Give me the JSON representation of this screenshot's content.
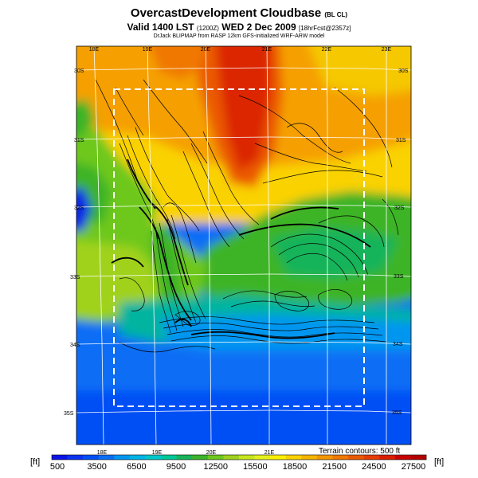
{
  "title": {
    "main": "OvercastDevelopment Cloudbase",
    "main_suffix": "(BL CL)",
    "valid": "Valid 1400 LST",
    "valid_code": "(1200Z)",
    "date": "WED 2 Dec 2009",
    "run_info": "[18hrFcst@2357z]",
    "model": "DrJack BLIPMAP from RASP 12km GFS-initialized WRF-ARW model"
  },
  "map": {
    "lon_labels_top": [
      "18E",
      "19E",
      "20E",
      "21E",
      "22E",
      "23E"
    ],
    "lon_labels_bottom": [
      "18E",
      "19E",
      "20E",
      "21E"
    ],
    "lat_labels_left": [
      "30S",
      "31S",
      "32S",
      "33S",
      "34S",
      "35S"
    ],
    "lat_labels_right": [
      "30S",
      "31S",
      "32S",
      "33S",
      "34S",
      "35S"
    ],
    "terrain_note": "Terrain contours: 500 ft"
  },
  "colorbar": {
    "unit_left": "[ft]",
    "unit_right": "[ft]",
    "labels": [
      "500",
      "3500",
      "6500",
      "9500",
      "12500",
      "15500",
      "18500",
      "21500",
      "24500",
      "27500"
    ],
    "colors": [
      "#0a14e6",
      "#0a32f0",
      "#0050f5",
      "#0a6ef5",
      "#0096f0",
      "#00b4e6",
      "#00c8c8",
      "#00c896",
      "#19b45a",
      "#3cb428",
      "#6ec81e",
      "#a0d21e",
      "#c8e61e",
      "#e6f01e",
      "#faf000",
      "#fad200",
      "#f5b400",
      "#f59600",
      "#f07800",
      "#eb5a00",
      "#e63c00",
      "#dc1e00",
      "#c80000",
      "#b40000"
    ]
  }
}
